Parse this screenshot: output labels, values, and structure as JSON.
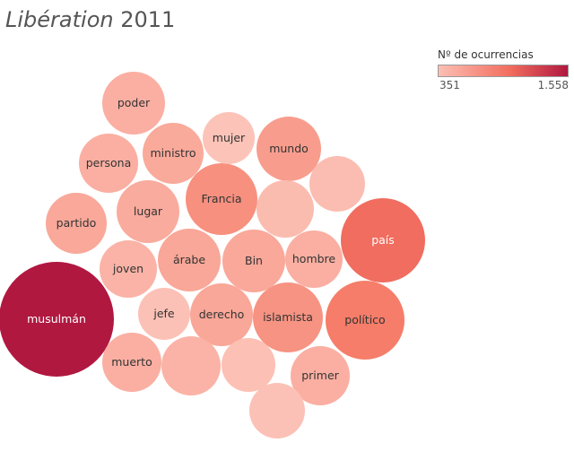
{
  "title_source": "Libération",
  "title_year": "2011",
  "legend": {
    "title": "Nº de ocurrencias",
    "min_label": "351",
    "max_label": "1.558",
    "color_low": "#fcbfb4",
    "color_high": "#b01840"
  },
  "chart_data": {
    "type": "packed-bubble",
    "title": "Libération 2011",
    "size_and_color_measure": "Nº de ocurrencias",
    "range": [
      351,
      1558
    ],
    "bubbles": [
      {
        "label": "musulmán",
        "value": 1558
      },
      {
        "label": "país",
        "value": 1000
      },
      {
        "label": "político",
        "value": 860
      },
      {
        "label": "Francia",
        "value": 720
      },
      {
        "label": "islamista",
        "value": 700
      },
      {
        "label": "mundo",
        "value": 630
      },
      {
        "label": "derecho",
        "value": 560
      },
      {
        "label": "árabe",
        "value": 560
      },
      {
        "label": "partido",
        "value": 550
      },
      {
        "label": "Bin",
        "value": 550
      },
      {
        "label": "ministro",
        "value": 540
      },
      {
        "label": "lugar",
        "value": 530
      },
      {
        "label": "hombre",
        "value": 500
      },
      {
        "label": "persona",
        "value": 500
      },
      {
        "label": "poder",
        "value": 500
      },
      {
        "label": "muerto",
        "value": 500
      },
      {
        "label": "primer",
        "value": 500
      },
      {
        "label": "joven",
        "value": 470
      },
      {
        "label": "",
        "value": 470
      },
      {
        "label": "",
        "value": 410
      },
      {
        "label": "jefe",
        "value": 370
      },
      {
        "label": "",
        "value": 400
      },
      {
        "label": "",
        "value": 380
      },
      {
        "label": "mujer",
        "value": 360
      },
      {
        "label": "",
        "value": 370
      }
    ]
  }
}
